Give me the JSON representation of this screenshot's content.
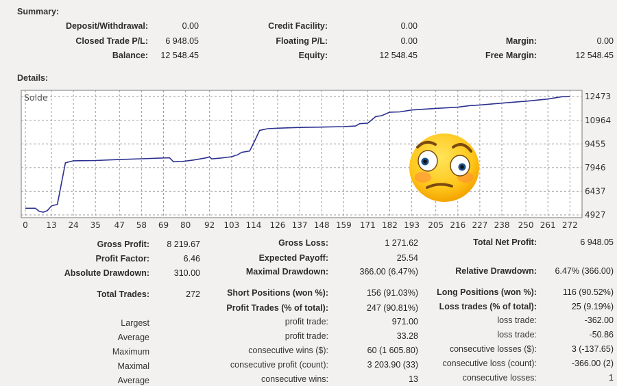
{
  "summary": {
    "title": "Summary:",
    "deposit_label": "Deposit/Withdrawal:",
    "deposit_value": "0.00",
    "credit_label": "Credit Facility:",
    "credit_value": "0.00",
    "closed_label": "Closed Trade P/L:",
    "closed_value": "6 948.05",
    "floating_label": "Floating P/L:",
    "floating_value": "0.00",
    "margin_label": "Margin:",
    "margin_value": "0.00",
    "balance_label": "Balance:",
    "balance_value": "12 548.45",
    "equity_label": "Equity:",
    "equity_value": "12 548.45",
    "free_margin_label": "Free Margin:",
    "free_margin_value": "12 548.45"
  },
  "details": {
    "title": "Details:"
  },
  "chart_data": {
    "type": "line",
    "title": "Solde",
    "series": [
      {
        "color": "#2b2f8f",
        "points": [
          [
            0,
            5350
          ],
          [
            5,
            5350
          ],
          [
            7,
            5150
          ],
          [
            9,
            5100
          ],
          [
            11,
            5200
          ],
          [
            13,
            5500
          ],
          [
            16,
            5600
          ],
          [
            20,
            8250
          ],
          [
            24,
            8380
          ],
          [
            35,
            8400
          ],
          [
            47,
            8460
          ],
          [
            58,
            8510
          ],
          [
            69,
            8560
          ],
          [
            72,
            8570
          ],
          [
            74,
            8320
          ],
          [
            78,
            8330
          ],
          [
            84,
            8430
          ],
          [
            90,
            8560
          ],
          [
            92,
            8630
          ],
          [
            93,
            8500
          ],
          [
            98,
            8560
          ],
          [
            103,
            8640
          ],
          [
            106,
            8760
          ],
          [
            108,
            8920
          ],
          [
            112,
            9000
          ],
          [
            114,
            9500
          ],
          [
            117,
            10320
          ],
          [
            121,
            10430
          ],
          [
            126,
            10460
          ],
          [
            137,
            10510
          ],
          [
            148,
            10530
          ],
          [
            159,
            10560
          ],
          [
            165,
            10600
          ],
          [
            167,
            10750
          ],
          [
            171,
            10780
          ],
          [
            175,
            11200
          ],
          [
            178,
            11260
          ],
          [
            182,
            11480
          ],
          [
            187,
            11500
          ],
          [
            193,
            11620
          ],
          [
            205,
            11720
          ],
          [
            216,
            11800
          ],
          [
            222,
            11900
          ],
          [
            227,
            11940
          ],
          [
            238,
            12060
          ],
          [
            250,
            12180
          ],
          [
            261,
            12320
          ],
          [
            268,
            12470
          ],
          [
            272,
            12473
          ]
        ]
      }
    ],
    "xlim": [
      0,
      276
    ],
    "ylim": [
      4927,
      12700
    ],
    "x_ticks": [
      0,
      13,
      24,
      35,
      47,
      58,
      69,
      80,
      92,
      103,
      114,
      126,
      137,
      148,
      159,
      171,
      182,
      193,
      205,
      216,
      227,
      238,
      250,
      261,
      272
    ],
    "y_ticks": [
      4927,
      6437,
      7946,
      9455,
      10964,
      12473
    ],
    "grid": true
  },
  "stats": {
    "gross_profit_label": "Gross Profit:",
    "gross_profit_value": "8 219.67",
    "gross_loss_label": "Gross Loss:",
    "gross_loss_value": "1 271.62",
    "total_net_label": "Total Net Profit:",
    "total_net_value": "6 948.05",
    "profit_factor_label": "Profit Factor:",
    "profit_factor_value": "6.46",
    "expected_payoff_label": "Expected Payoff:",
    "expected_payoff_value": "25.54",
    "absolute_dd_label": "Absolute Drawdown:",
    "absolute_dd_value": "310.00",
    "maximal_dd_label": "Maximal Drawdown:",
    "maximal_dd_value": "366.00 (6.47%)",
    "relative_dd_label": "Relative Drawdown:",
    "relative_dd_value": "6.47% (366.00)",
    "total_trades_label": "Total Trades:",
    "total_trades_value": "272",
    "short_label": "Short Positions (won %):",
    "short_value": "156 (91.03%)",
    "long_label": "Long Positions (won %):",
    "long_value": "116 (90.52%)",
    "profit_trades_label": "Profit Trades (% of total):",
    "profit_trades_value": "247 (90.81%)",
    "loss_trades_label": "Loss trades (% of total):",
    "loss_trades_value": "25 (9.19%)",
    "largest_label": "Largest",
    "largest_profit_label": "profit trade:",
    "largest_profit_value": "971.00",
    "largest_loss_label": "loss trade:",
    "largest_loss_value": "-362.00",
    "average_label": "Average",
    "average_profit_label": "profit trade:",
    "average_profit_value": "33.28",
    "average_loss_label": "loss trade:",
    "average_loss_value": "-50.86",
    "maximum_label": "Maximum",
    "max_wins_label": "consecutive wins ($):",
    "max_wins_value": "60 (1 605.80)",
    "max_losses_label": "consecutive losses ($):",
    "max_losses_value": "3 (-137.65)",
    "maximal_label": "Maximal",
    "maximal_profit_label": "consecutive profit (count):",
    "maximal_profit_value": "3 203.90 (33)",
    "maximal_loss_label": "consecutive loss (count):",
    "maximal_loss_value": "-366.00 (2)",
    "average2_label": "Average",
    "avg_wins_label": "consecutive wins:",
    "avg_wins_value": "13",
    "avg_losses_label": "consecutive losses:",
    "avg_losses_value": "1"
  },
  "emoji": {
    "name": "flushed-face",
    "color": "#ffcc22"
  }
}
